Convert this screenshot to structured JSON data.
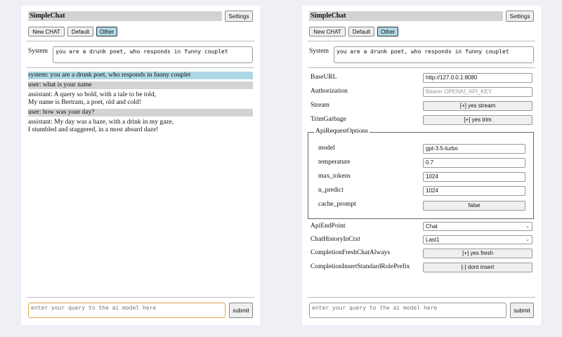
{
  "app": {
    "title": "SimpleChat",
    "settings_label": "Settings",
    "new_chat_label": "New CHAT",
    "default_label": "Default",
    "other_label": "Other",
    "system_label": "System",
    "system_prompt": "you are a drunk poet, who responds in funny couplet",
    "query_placeholder": "enter your query to the ai model here",
    "submit_label": "submit"
  },
  "chat": [
    {
      "role": "system",
      "lines": [
        "system: you are a drunk poet, who responds in funny couplet"
      ]
    },
    {
      "role": "user",
      "lines": [
        "user: what is your name"
      ]
    },
    {
      "role": "assistant",
      "lines": [
        "assistant: A query so bold, with a tale to be told,",
        "My name is Bertram, a poet, old and cold!"
      ]
    },
    {
      "role": "user",
      "lines": [
        "user: how was your day?"
      ]
    },
    {
      "role": "assistant",
      "lines": [
        "assistant: My day was a haze, with a drink in my gaze,",
        "I stumbled and staggered, in a most absurd daze!"
      ]
    }
  ],
  "settings": {
    "base_url": {
      "label": "BaseURL",
      "value": "http://127.0.0.1:8080"
    },
    "authorization": {
      "label": "Authorization",
      "placeholder": "Bearer OPENAI_API_KEY"
    },
    "stream": {
      "label": "Stream",
      "value": "[+] yes stream"
    },
    "trim_garbage": {
      "label": "TrimGarbage",
      "value": "[+] yes trim"
    },
    "api_request_options": {
      "legend": "ApiRequestOptions",
      "model": {
        "label": "model",
        "value": "gpt-3.5-turbo"
      },
      "temperature": {
        "label": "temperature",
        "value": "0.7"
      },
      "max_tokens": {
        "label": "max_tokens",
        "value": "1024"
      },
      "n_predict": {
        "label": "n_predict",
        "value": "1024"
      },
      "cache_prompt": {
        "label": "cache_prompt",
        "value": "false"
      }
    },
    "api_endpoint": {
      "label": "ApiEndPoint",
      "value": "Chat"
    },
    "chat_history": {
      "label": "ChatHistoryInCtxt",
      "value": "Last1"
    },
    "fresh_chat": {
      "label": "CompletionFreshChatAlways",
      "value": "[+] yes fresh"
    },
    "insert_prefix": {
      "label": "CompletionInsertStandardRolePrefix",
      "value": "[-] dont insert"
    }
  },
  "colors": {
    "system_msg": "#add8e6",
    "user_msg": "#d3d3d3",
    "selected_button": "#add8e6",
    "focus_border": "#e0a84a"
  }
}
